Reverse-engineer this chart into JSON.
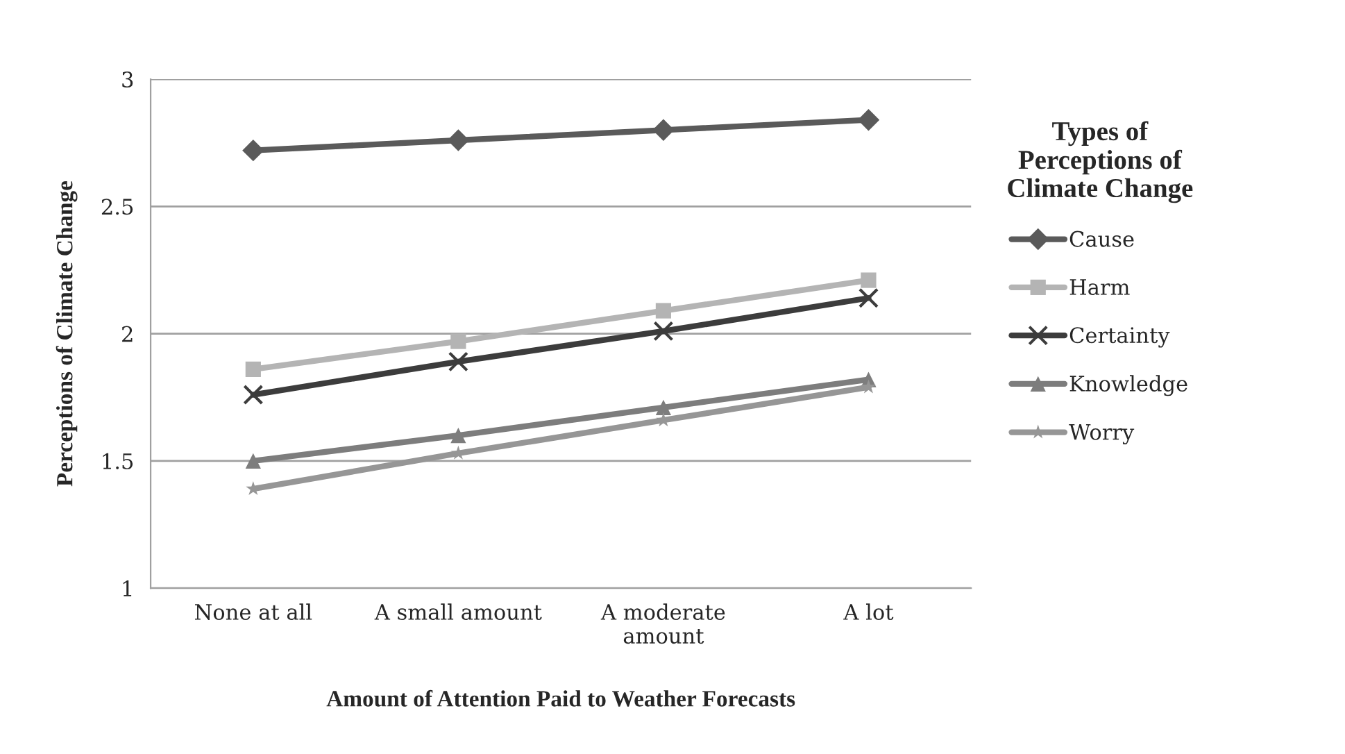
{
  "chart_data": {
    "type": "line",
    "xlabel": "Amount of Attention Paid to Weather Forecasts",
    "ylabel": "Perceptions of Climate Change",
    "legend_title": "Types of\nPerceptions of\nClimate Change",
    "legend": "right",
    "categories": [
      "None at all",
      "A small amount",
      "A moderate\namount",
      "A lot"
    ],
    "ylim": [
      1,
      3
    ],
    "yticks": [
      1,
      1.5,
      2,
      2.5,
      3
    ],
    "grid": "y",
    "line_style": "solid",
    "series": [
      {
        "name": "Cause",
        "color": "#5a5a5a",
        "marker": "diamond",
        "values": [
          2.72,
          2.76,
          2.8,
          2.84
        ]
      },
      {
        "name": "Harm",
        "color": "#b4b4b4",
        "marker": "square",
        "values": [
          1.86,
          1.97,
          2.09,
          2.21
        ]
      },
      {
        "name": "Certainty",
        "color": "#3c3c3c",
        "marker": "cross",
        "values": [
          1.76,
          1.89,
          2.01,
          2.14
        ]
      },
      {
        "name": "Knowledge",
        "color": "#7d7d7d",
        "marker": "triangle",
        "values": [
          1.5,
          1.6,
          1.71,
          1.82
        ]
      },
      {
        "name": "Worry",
        "color": "#969696",
        "marker": "star",
        "values": [
          1.39,
          1.53,
          1.66,
          1.79
        ]
      }
    ]
  }
}
